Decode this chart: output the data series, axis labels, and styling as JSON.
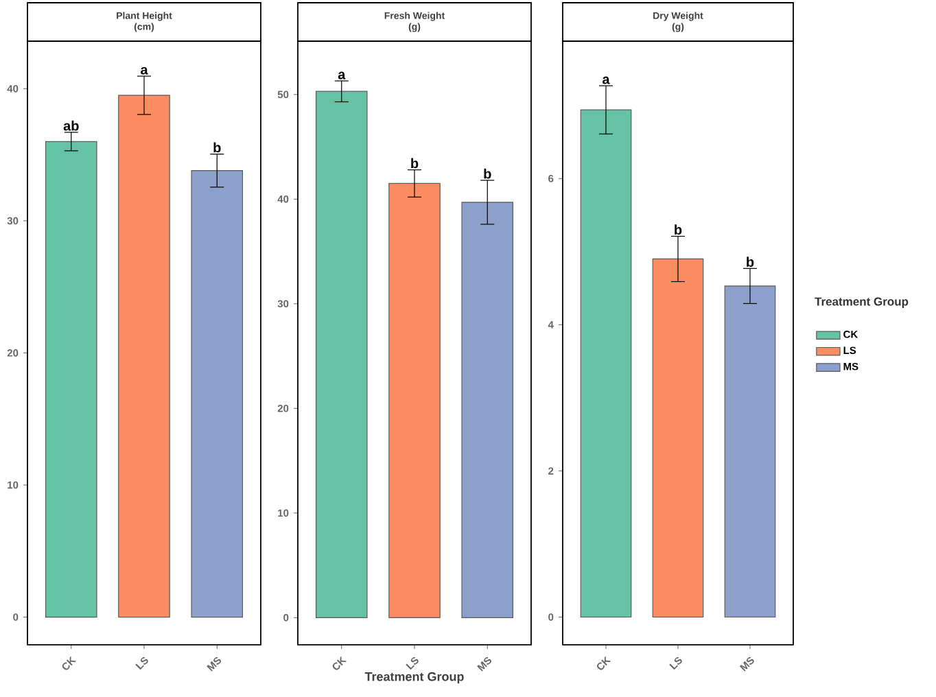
{
  "chart_data": [
    {
      "type": "bar",
      "title": "Plant Height",
      "subtitle": "(cm)",
      "categories": [
        "CK",
        "LS",
        "MS"
      ],
      "ylim": [
        -2.1,
        43.6
      ],
      "yticks": [
        0,
        10,
        20,
        30,
        40
      ],
      "series": [
        {
          "color": "#66c2a5",
          "values": [
            36.0,
            null,
            null
          ],
          "errors": [
            0.7,
            null,
            null
          ]
        },
        {
          "color": "#fc8d62",
          "values": [
            null,
            39.5,
            null
          ],
          "errors": [
            null,
            1.45,
            null
          ]
        },
        {
          "color": "#8da0cb",
          "values": [
            null,
            null,
            33.8
          ],
          "errors": [
            null,
            null,
            1.25
          ]
        }
      ],
      "annotations": [
        {
          "text": "ab",
          "x": "CK",
          "y": 36.7
        },
        {
          "text": "a",
          "x": "LS",
          "y": 40.95
        },
        {
          "text": "b",
          "x": "MS",
          "y": 35.05
        }
      ]
    },
    {
      "type": "bar",
      "title": "Fresh Weight",
      "subtitle": "(g)",
      "xlabel": "Treatment Group",
      "categories": [
        "CK",
        "LS",
        "MS"
      ],
      "ylim": [
        -2.6,
        55.1
      ],
      "yticks": [
        0,
        10,
        20,
        30,
        40,
        50
      ],
      "series": [
        {
          "color": "#66c2a5",
          "values": [
            50.3,
            null,
            null
          ],
          "errors": [
            1.0,
            null,
            null
          ]
        },
        {
          "color": "#fc8d62",
          "values": [
            null,
            41.5,
            null
          ],
          "errors": [
            null,
            1.3,
            null
          ]
        },
        {
          "color": "#8da0cb",
          "values": [
            null,
            null,
            39.7
          ],
          "errors": [
            null,
            null,
            2.1
          ]
        }
      ],
      "annotations": [
        {
          "text": "a",
          "x": "CK",
          "y": 51.3
        },
        {
          "text": "b",
          "x": "LS",
          "y": 42.8
        },
        {
          "text": "b",
          "x": "MS",
          "y": 41.8
        }
      ]
    },
    {
      "type": "bar",
      "title": "Dry Weight",
      "subtitle": "(g)",
      "categories": [
        "CK",
        "LS",
        "MS"
      ],
      "ylim": [
        -0.38,
        7.88
      ],
      "yticks": [
        0,
        2,
        4,
        6
      ],
      "legend": "right",
      "legend_title": "Treatment Group",
      "series": [
        {
          "name": "CK",
          "color": "#66c2a5",
          "values": [
            6.94,
            null,
            null
          ],
          "errors": [
            0.33,
            null,
            null
          ]
        },
        {
          "name": "LS",
          "color": "#fc8d62",
          "values": [
            null,
            4.9,
            null
          ],
          "errors": [
            null,
            0.31,
            null
          ]
        },
        {
          "name": "MS",
          "color": "#8da0cb",
          "values": [
            null,
            null,
            4.53
          ],
          "errors": [
            null,
            null,
            0.24
          ]
        }
      ],
      "annotations": [
        {
          "text": "a",
          "x": "CK",
          "y": 7.27
        },
        {
          "text": "b",
          "x": "LS",
          "y": 5.21
        },
        {
          "text": "b",
          "x": "MS",
          "y": 4.77
        }
      ]
    }
  ]
}
